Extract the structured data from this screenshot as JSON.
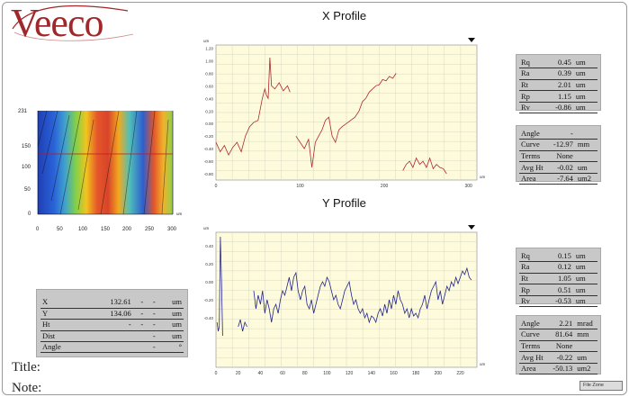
{
  "logo": {
    "text": "Veeco"
  },
  "labels": {
    "title": "Title:",
    "note": "Note:"
  },
  "x_profile": {
    "title": "X Profile",
    "stats_top": [
      {
        "k": "Rq",
        "v": "0.45",
        "u": "um"
      },
      {
        "k": "Ra",
        "v": "0.39",
        "u": "um"
      },
      {
        "k": "Rt",
        "v": "2.01",
        "u": "um"
      },
      {
        "k": "Rp",
        "v": "1.15",
        "u": "um"
      },
      {
        "k": "Rv",
        "v": "-0.86",
        "u": "um"
      }
    ],
    "stats_bottom": [
      {
        "k": "Angle",
        "v": "-",
        "u": ""
      },
      {
        "k": "Curve",
        "v": "-12.97",
        "u": "mm"
      },
      {
        "k": "Terms",
        "v": "None",
        "u": ""
      },
      {
        "k": "Avg Ht",
        "v": "-0.02",
        "u": "um"
      },
      {
        "k": "Area",
        "v": "-7.64",
        "u": "um2"
      }
    ]
  },
  "y_profile": {
    "title": "Y Profile",
    "stats_top": [
      {
        "k": "Rq",
        "v": "0.15",
        "u": "um"
      },
      {
        "k": "Ra",
        "v": "0.12",
        "u": "um"
      },
      {
        "k": "Rt",
        "v": "1.05",
        "u": "um"
      },
      {
        "k": "Rp",
        "v": "0.51",
        "u": "um"
      },
      {
        "k": "Rv",
        "v": "-0.53",
        "u": "um"
      }
    ],
    "stats_bottom": [
      {
        "k": "Angle",
        "v": "2.21",
        "u": "mrad"
      },
      {
        "k": "Curve",
        "v": "81.64",
        "u": "mm"
      },
      {
        "k": "Terms",
        "v": "None",
        "u": ""
      },
      {
        "k": "Avg Ht",
        "v": "-0.22",
        "u": "um"
      },
      {
        "k": "Area",
        "v": "-50.13",
        "u": "um2"
      }
    ]
  },
  "cursor_box": {
    "rows": [
      {
        "k": "X",
        "a": "132.61",
        "b": "-",
        "c": "-",
        "u": "um"
      },
      {
        "k": "Y",
        "a": "134.06",
        "b": "-",
        "c": "-",
        "u": "um"
      },
      {
        "k": "Ht",
        "a": "-",
        "b": "-",
        "c": "-",
        "u": "um"
      },
      {
        "k": "Dist",
        "a": "",
        "b": "",
        "c": "-",
        "u": "um"
      },
      {
        "k": "Angle",
        "a": "",
        "b": "",
        "c": "-",
        "u": "°"
      }
    ]
  },
  "map": {
    "y_ticks": [
      "231",
      "150",
      "100",
      "50",
      "0"
    ],
    "x_ticks": [
      "0",
      "50",
      "100",
      "150",
      "200",
      "250",
      "300"
    ],
    "unit": "um"
  },
  "zone_button": "File Zone",
  "chart_data": [
    {
      "type": "line",
      "name": "X Profile",
      "xlabel": "um",
      "ylabel": "um",
      "xlim": [
        0,
        310
      ],
      "ylim": [
        -0.9,
        1.25
      ],
      "y_ticks": [
        1.2,
        1.0,
        0.8,
        0.6,
        0.4,
        0.2,
        0.0,
        -0.2,
        -0.4,
        -0.6,
        -0.8
      ],
      "x_ticks": [
        0,
        100,
        200,
        300
      ],
      "x_tick_labels": [
        "0",
        "100",
        "200",
        "300"
      ],
      "series": [
        {
          "color": "#b0282a",
          "segments": [
            [
              [
                0,
                -0.3
              ],
              [
                5,
                -0.45
              ],
              [
                10,
                -0.35
              ],
              [
                15,
                -0.5
              ],
              [
                20,
                -0.38
              ],
              [
                25,
                -0.3
              ],
              [
                30,
                -0.45
              ],
              [
                35,
                -0.2
              ],
              [
                40,
                -0.05
              ],
              [
                45,
                0.02
              ],
              [
                50,
                0.05
              ],
              [
                55,
                0.4
              ],
              [
                58,
                0.55
              ],
              [
                60,
                0.45
              ],
              [
                62,
                0.4
              ],
              [
                64,
                1.05
              ],
              [
                66,
                0.6
              ],
              [
                70,
                0.55
              ],
              [
                75,
                0.65
              ],
              [
                80,
                0.52
              ],
              [
                85,
                0.6
              ],
              [
                88,
                0.5
              ]
            ],
            [
              [
                95,
                -0.2
              ],
              [
                100,
                -0.3
              ],
              [
                105,
                -0.4
              ],
              [
                110,
                -0.25
              ],
              [
                114,
                -0.7
              ],
              [
                118,
                -0.3
              ],
              [
                122,
                -0.2
              ],
              [
                126,
                -0.1
              ],
              [
                130,
                0.05
              ],
              [
                134,
                0.1
              ],
              [
                138,
                -0.2
              ],
              [
                142,
                -0.3
              ],
              [
                146,
                -0.1
              ],
              [
                150,
                -0.05
              ],
              [
                155,
                0.0
              ],
              [
                160,
                0.05
              ],
              [
                165,
                0.1
              ],
              [
                170,
                0.2
              ],
              [
                174,
                0.35
              ],
              [
                178,
                0.4
              ],
              [
                182,
                0.5
              ],
              [
                186,
                0.55
              ],
              [
                190,
                0.6
              ],
              [
                194,
                0.62
              ],
              [
                198,
                0.7
              ],
              [
                202,
                0.68
              ],
              [
                206,
                0.75
              ],
              [
                210,
                0.72
              ],
              [
                214,
                0.8
              ]
            ],
            [
              [
                222,
                -0.75
              ],
              [
                226,
                -0.65
              ],
              [
                230,
                -0.6
              ],
              [
                234,
                -0.7
              ],
              [
                238,
                -0.55
              ],
              [
                242,
                -0.65
              ],
              [
                246,
                -0.6
              ],
              [
                250,
                -0.7
              ],
              [
                254,
                -0.55
              ],
              [
                258,
                -0.72
              ],
              [
                262,
                -0.65
              ],
              [
                266,
                -0.7
              ],
              [
                270,
                -0.72
              ],
              [
                274,
                -0.8
              ]
            ]
          ]
        }
      ]
    },
    {
      "type": "line",
      "name": "Y Profile",
      "xlabel": "um",
      "ylabel": "um",
      "xlim": [
        0,
        235
      ],
      "ylim": [
        -0.95,
        0.55
      ],
      "y_ticks": [
        0.4,
        0.2,
        0.0,
        -0.2,
        -0.4
      ],
      "x_ticks": [
        0,
        20,
        40,
        60,
        80,
        100,
        120,
        140,
        160,
        180,
        200,
        220
      ],
      "x_tick_labels": [
        "0",
        "20",
        "40",
        "60",
        "80",
        "100",
        "120",
        "140",
        "160",
        "180",
        "200",
        "220"
      ],
      "series": [
        {
          "color": "#24248a",
          "segments": [
            [
              [
                1,
                -0.45
              ],
              [
                2,
                -0.55
              ],
              [
                3,
                -0.5
              ],
              [
                4,
                0.5
              ],
              [
                5,
                0.0
              ],
              [
                6,
                -0.6
              ]
            ],
            [
              [
                20,
                -0.5
              ],
              [
                22,
                -0.42
              ],
              [
                24,
                -0.55
              ],
              [
                26,
                -0.45
              ],
              [
                28,
                -0.5
              ]
            ],
            [
              [
                34,
                -0.1
              ],
              [
                36,
                -0.3
              ],
              [
                38,
                -0.15
              ],
              [
                40,
                -0.25
              ],
              [
                42,
                -0.1
              ],
              [
                44,
                -0.35
              ],
              [
                46,
                -0.2
              ],
              [
                48,
                -0.3
              ],
              [
                50,
                -0.45
              ],
              [
                52,
                -0.3
              ],
              [
                54,
                -0.25
              ],
              [
                56,
                -0.35
              ],
              [
                58,
                -0.2
              ],
              [
                60,
                -0.1
              ],
              [
                62,
                -0.15
              ],
              [
                64,
                -0.05
              ],
              [
                66,
                0.05
              ],
              [
                68,
                -0.1
              ],
              [
                70,
                0.05
              ],
              [
                72,
                0.1
              ],
              [
                74,
                -0.1
              ],
              [
                76,
                -0.2
              ],
              [
                78,
                -0.1
              ],
              [
                80,
                -0.05
              ],
              [
                82,
                -0.25
              ],
              [
                84,
                -0.3
              ],
              [
                86,
                -0.2
              ],
              [
                88,
                -0.35
              ],
              [
                90,
                -0.25
              ],
              [
                92,
                -0.15
              ],
              [
                94,
                -0.05
              ],
              [
                96,
                0.0
              ],
              [
                98,
                -0.05
              ],
              [
                100,
                0.05
              ],
              [
                102,
                0.0
              ],
              [
                104,
                -0.1
              ],
              [
                106,
                -0.2
              ],
              [
                108,
                -0.15
              ],
              [
                110,
                -0.25
              ],
              [
                112,
                -0.3
              ],
              [
                114,
                -0.2
              ],
              [
                116,
                -0.1
              ],
              [
                118,
                -0.05
              ],
              [
                120,
                0.0
              ],
              [
                122,
                -0.15
              ],
              [
                124,
                -0.25
              ],
              [
                126,
                -0.2
              ],
              [
                128,
                -0.3
              ],
              [
                130,
                -0.35
              ],
              [
                132,
                -0.3
              ],
              [
                134,
                -0.4
              ],
              [
                136,
                -0.35
              ],
              [
                138,
                -0.45
              ],
              [
                140,
                -0.38
              ],
              [
                142,
                -0.4
              ],
              [
                144,
                -0.45
              ],
              [
                146,
                -0.35
              ],
              [
                148,
                -0.3
              ],
              [
                150,
                -0.38
              ],
              [
                152,
                -0.25
              ],
              [
                154,
                -0.35
              ],
              [
                156,
                -0.2
              ],
              [
                158,
                -0.3
              ],
              [
                160,
                -0.15
              ],
              [
                162,
                -0.25
              ],
              [
                164,
                -0.1
              ],
              [
                166,
                -0.2
              ],
              [
                168,
                -0.25
              ],
              [
                170,
                -0.35
              ],
              [
                172,
                -0.3
              ],
              [
                174,
                -0.4
              ],
              [
                176,
                -0.3
              ],
              [
                178,
                -0.38
              ],
              [
                180,
                -0.35
              ],
              [
                182,
                -0.4
              ],
              [
                184,
                -0.3
              ],
              [
                186,
                -0.25
              ],
              [
                188,
                -0.15
              ],
              [
                190,
                -0.3
              ],
              [
                192,
                -0.2
              ],
              [
                194,
                -0.1
              ],
              [
                196,
                -0.05
              ],
              [
                198,
                0.0
              ],
              [
                200,
                -0.2
              ],
              [
                202,
                -0.1
              ],
              [
                204,
                -0.25
              ],
              [
                206,
                -0.15
              ],
              [
                208,
                -0.05
              ],
              [
                210,
                -0.1
              ],
              [
                212,
                0.0
              ],
              [
                214,
                -0.05
              ],
              [
                216,
                0.05
              ],
              [
                218,
                -0.02
              ],
              [
                220,
                0.05
              ],
              [
                222,
                0.12
              ],
              [
                224,
                0.08
              ],
              [
                226,
                0.15
              ],
              [
                228,
                0.05
              ],
              [
                230,
                0.02
              ]
            ]
          ]
        }
      ]
    }
  ]
}
